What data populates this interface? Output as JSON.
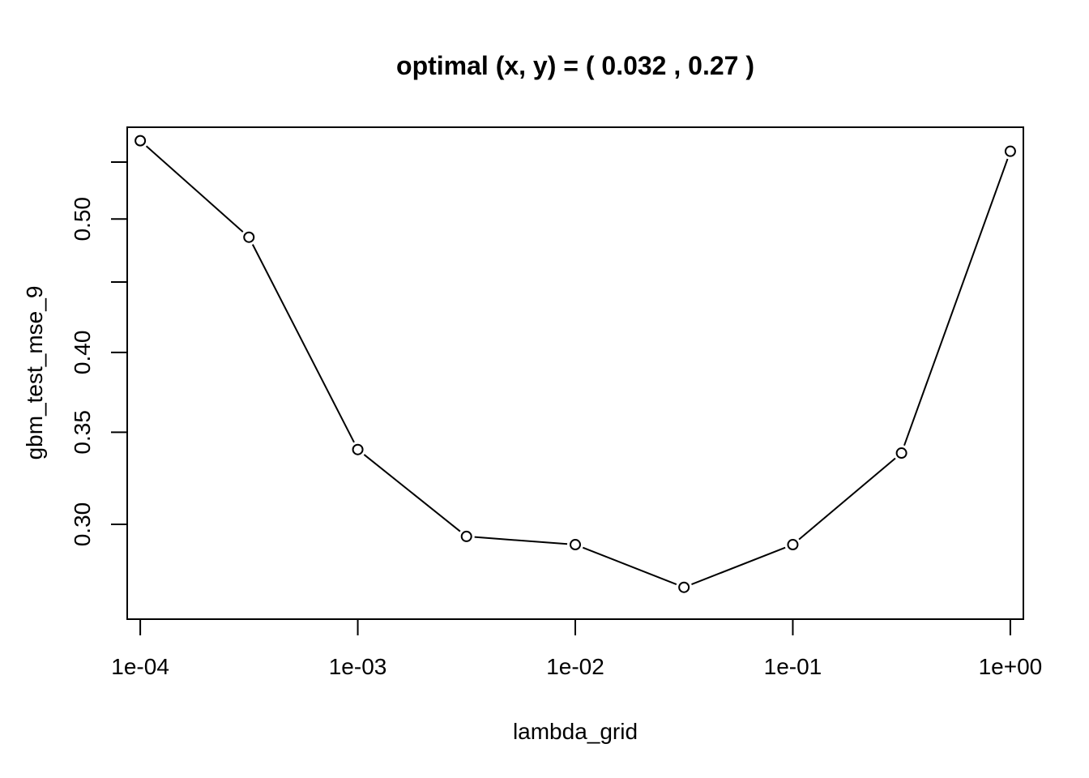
{
  "chart_data": {
    "type": "line",
    "title": "optimal (x, y) = ( 0.032 ,  0.27 )",
    "xlabel": "lambda_grid",
    "ylabel": "gbm_test_mse_9",
    "x_scale": "log",
    "y_scale": "log",
    "xlim": [
      8.71e-05,
      1.148
    ],
    "ylim": [
      0.256,
      0.583
    ],
    "x_ticks": [
      {
        "value": 0.0001,
        "label": "1e-04"
      },
      {
        "value": 0.001,
        "label": "1e-03"
      },
      {
        "value": 0.01,
        "label": "1e-02"
      },
      {
        "value": 0.1,
        "label": "1e-01"
      },
      {
        "value": 1,
        "label": "1e+00"
      }
    ],
    "y_ticks": [
      {
        "value": 0.3,
        "label": "0.30"
      },
      {
        "value": 0.35,
        "label": "0.35"
      },
      {
        "value": 0.4,
        "label": "0.40"
      },
      {
        "value": 0.45,
        "label": ""
      },
      {
        "value": 0.5,
        "label": "0.50"
      },
      {
        "value": 0.55,
        "label": ""
      }
    ],
    "grid": false,
    "series": [
      {
        "points": [
          {
            "x": 0.0001,
            "y": 0.57
          },
          {
            "x": 0.000316,
            "y": 0.485
          },
          {
            "x": 0.001,
            "y": 0.34
          },
          {
            "x": 0.00316,
            "y": 0.294
          },
          {
            "x": 0.01,
            "y": 0.29
          },
          {
            "x": 0.0316,
            "y": 0.27
          },
          {
            "x": 0.1,
            "y": 0.29
          },
          {
            "x": 0.316,
            "y": 0.338
          },
          {
            "x": 1,
            "y": 0.56
          }
        ],
        "line_color": "#000000",
        "marker": "open-circle"
      }
    ]
  }
}
